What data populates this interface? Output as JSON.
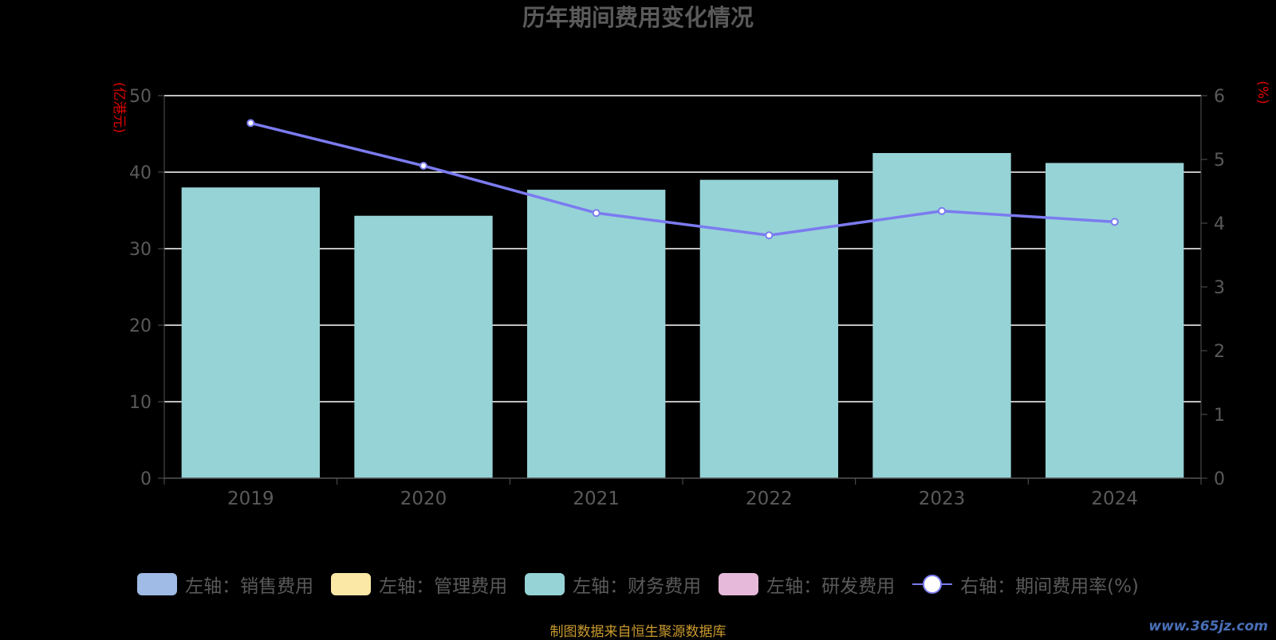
{
  "chart_data": {
    "type": "bar",
    "title": "历年期间费用变化情况",
    "categories": [
      "2019",
      "2020",
      "2021",
      "2022",
      "2023",
      "2024"
    ],
    "y_left": {
      "label": "(亿港元)",
      "ylim": [
        0,
        50
      ],
      "ticks": [
        "0",
        "10",
        "20",
        "30",
        "40",
        "50"
      ]
    },
    "y_right": {
      "label": "(%)",
      "ylim": [
        0,
        6
      ],
      "ticks": [
        "0",
        "1",
        "2",
        "3",
        "4",
        "5",
        "6"
      ]
    },
    "series": [
      {
        "name": "左轴：财务费用",
        "type": "bar",
        "axis": "left",
        "color": "#96d3d6",
        "values": [
          38.0,
          34.3,
          37.7,
          39.0,
          42.5,
          41.2
        ]
      },
      {
        "name": "右轴：期间费用率(%)",
        "type": "line",
        "axis": "right",
        "color": "#7b7bf0",
        "values": [
          5.57,
          4.9,
          4.16,
          3.81,
          4.19,
          4.02
        ]
      }
    ],
    "grid": true,
    "legend_position": "bottom"
  },
  "legend": [
    {
      "label": "左轴：销售费用",
      "color": "#9fbbe6",
      "kind": "bar"
    },
    {
      "label": "左轴：管理费用",
      "color": "#fbe7a6",
      "kind": "bar"
    },
    {
      "label": "左轴：财务费用",
      "color": "#96d3d6",
      "kind": "bar"
    },
    {
      "label": "左轴：研发费用",
      "color": "#e6b9db",
      "kind": "bar"
    },
    {
      "label": "右轴：期间费用率(%)",
      "color": "#7b7bf0",
      "kind": "line"
    }
  ],
  "source_note": "制图数据来自恒生聚源数据库",
  "watermark": "www.365jz.com"
}
